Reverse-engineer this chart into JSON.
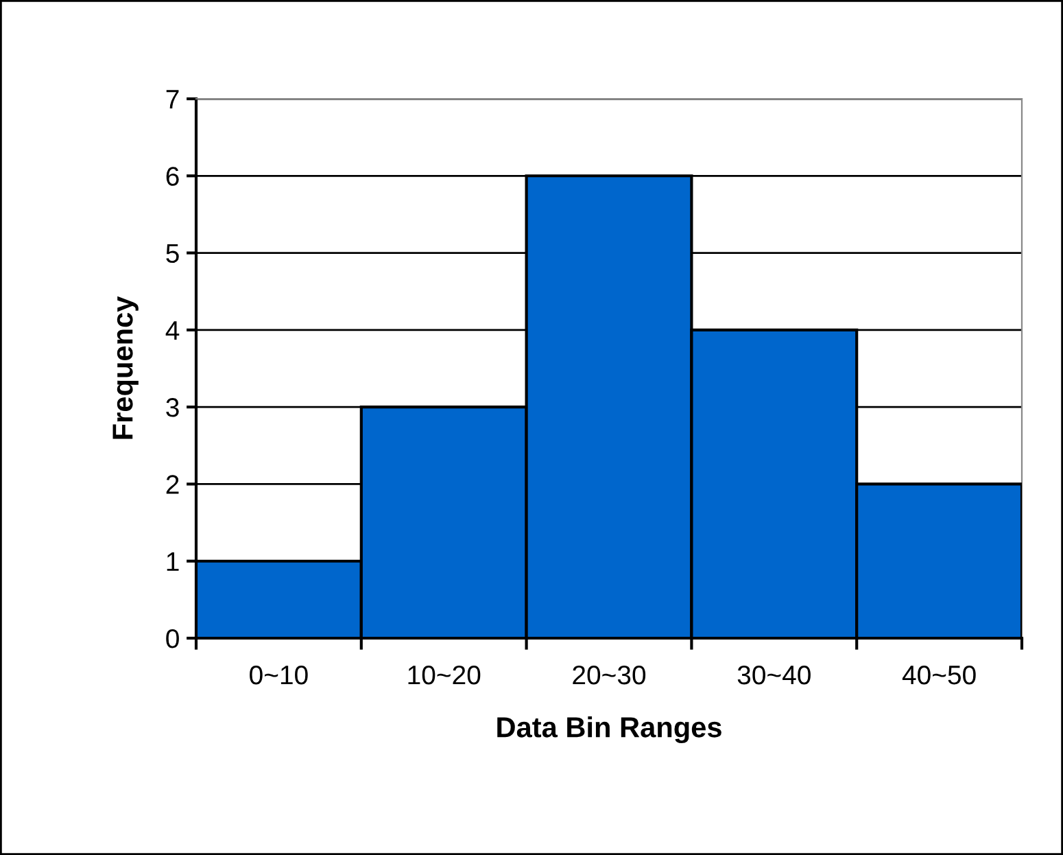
{
  "chart_data": {
    "type": "bar",
    "xlabel": "Data Bin Ranges",
    "ylabel": "Frequency",
    "categories": [
      "0~10",
      "10~20",
      "20~30",
      "30~40",
      "40~50"
    ],
    "values": [
      1,
      3,
      6,
      4,
      2
    ],
    "color": "#0066cc",
    "ylim": [
      0,
      7
    ],
    "yticks": [
      0,
      1,
      2,
      3,
      4,
      5,
      6,
      7
    ],
    "grid": "y",
    "legend": false
  }
}
